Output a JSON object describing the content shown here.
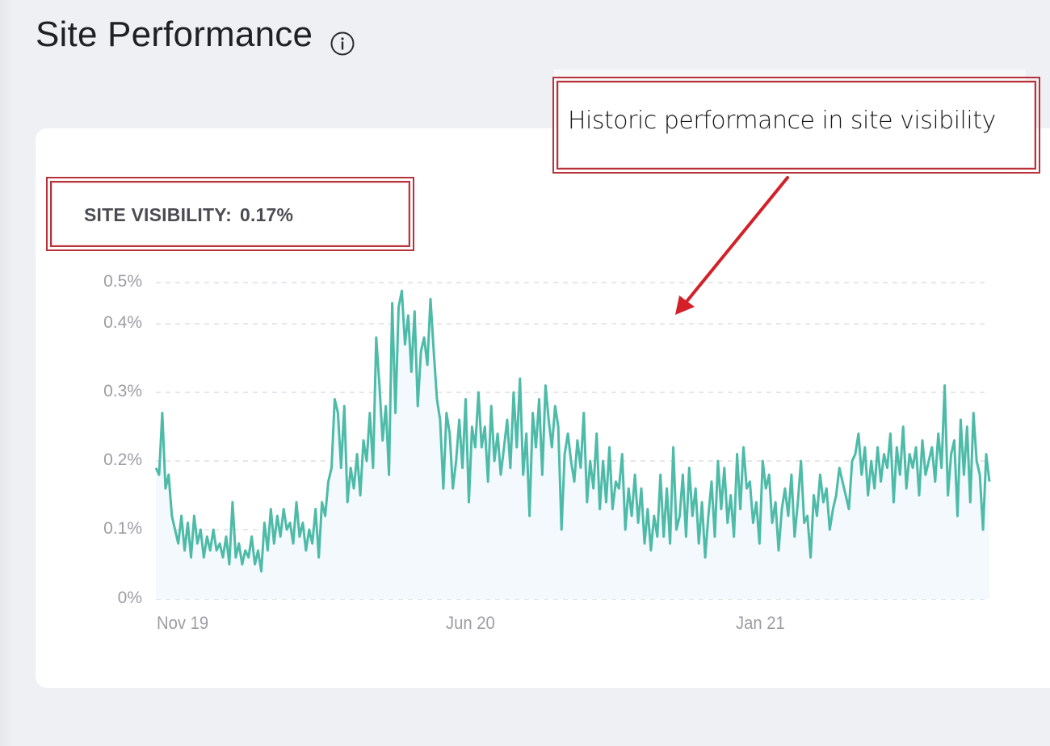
{
  "page": {
    "title": "Site Performance",
    "info_icon": "info-circle-icon"
  },
  "metric": {
    "label": "SITE VISIBILITY:",
    "value": "0.17%"
  },
  "annotation": {
    "callout_text": "Historic performance in site visibility",
    "arrow_icon": "arrow-down-left-icon",
    "accent_color": "#d42028"
  },
  "colors": {
    "line": "#4dbba8",
    "area": "#f3f9fd",
    "grid": "#dedfe3",
    "axis_text": "#9b9da2",
    "annotation_border": "#b8323a"
  },
  "chart_data": {
    "type": "area",
    "title": "Site Visibility",
    "xlabel": "",
    "ylabel": "",
    "ylim": [
      0,
      0.5
    ],
    "y_unit": "%",
    "y_ticks": [
      "0%",
      "0.1%",
      "0.2%",
      "0.3%",
      "0.4%",
      "0.5%"
    ],
    "x_ticks": [
      "Nov 19",
      "Jun 20",
      "Jan 21"
    ],
    "grid": true,
    "grid_style": "dashed horizontal",
    "legend": null,
    "x_range": [
      "Oct 19",
      "Aug 21"
    ],
    "series": [
      {
        "name": "Site visibility",
        "values": [
          0.19,
          0.18,
          0.27,
          0.16,
          0.18,
          0.12,
          0.1,
          0.08,
          0.12,
          0.07,
          0.11,
          0.06,
          0.12,
          0.08,
          0.1,
          0.06,
          0.09,
          0.07,
          0.1,
          0.07,
          0.08,
          0.06,
          0.09,
          0.05,
          0.14,
          0.06,
          0.08,
          0.05,
          0.07,
          0.06,
          0.09,
          0.05,
          0.07,
          0.04,
          0.11,
          0.07,
          0.13,
          0.08,
          0.12,
          0.09,
          0.13,
          0.1,
          0.11,
          0.08,
          0.14,
          0.09,
          0.11,
          0.07,
          0.1,
          0.08,
          0.13,
          0.06,
          0.14,
          0.12,
          0.17,
          0.19,
          0.29,
          0.27,
          0.19,
          0.28,
          0.14,
          0.19,
          0.16,
          0.21,
          0.15,
          0.23,
          0.2,
          0.27,
          0.19,
          0.38,
          0.31,
          0.23,
          0.28,
          0.18,
          0.45,
          0.27,
          0.44,
          0.48,
          0.37,
          0.42,
          0.33,
          0.43,
          0.28,
          0.36,
          0.38,
          0.34,
          0.46,
          0.36,
          0.29,
          0.26,
          0.16,
          0.27,
          0.24,
          0.16,
          0.2,
          0.26,
          0.19,
          0.29,
          0.14,
          0.25,
          0.22,
          0.3,
          0.22,
          0.25,
          0.17,
          0.28,
          0.2,
          0.24,
          0.18,
          0.22,
          0.26,
          0.19,
          0.3,
          0.22,
          0.32,
          0.18,
          0.24,
          0.12,
          0.27,
          0.22,
          0.29,
          0.18,
          0.31,
          0.26,
          0.22,
          0.28,
          0.25,
          0.1,
          0.21,
          0.24,
          0.2,
          0.17,
          0.23,
          0.19,
          0.27,
          0.14,
          0.2,
          0.16,
          0.24,
          0.13,
          0.2,
          0.14,
          0.22,
          0.13,
          0.17,
          0.16,
          0.21,
          0.1,
          0.16,
          0.12,
          0.18,
          0.11,
          0.16,
          0.08,
          0.13,
          0.07,
          0.12,
          0.09,
          0.18,
          0.09,
          0.16,
          0.08,
          0.22,
          0.1,
          0.12,
          0.18,
          0.09,
          0.19,
          0.12,
          0.16,
          0.08,
          0.14,
          0.06,
          0.12,
          0.17,
          0.09,
          0.2,
          0.13,
          0.19,
          0.11,
          0.15,
          0.09,
          0.21,
          0.13,
          0.22,
          0.16,
          0.17,
          0.11,
          0.14,
          0.08,
          0.2,
          0.16,
          0.18,
          0.11,
          0.14,
          0.07,
          0.13,
          0.16,
          0.12,
          0.18,
          0.09,
          0.14,
          0.2,
          0.11,
          0.12,
          0.06,
          0.15,
          0.12,
          0.18,
          0.14,
          0.16,
          0.1,
          0.13,
          0.15,
          0.19,
          0.17,
          0.15,
          0.13,
          0.2,
          0.21,
          0.24,
          0.18,
          0.22,
          0.15,
          0.2,
          0.16,
          0.22,
          0.17,
          0.21,
          0.19,
          0.24,
          0.14,
          0.22,
          0.18,
          0.25,
          0.16,
          0.21,
          0.19,
          0.22,
          0.15,
          0.23,
          0.18,
          0.2,
          0.22,
          0.17,
          0.24,
          0.19,
          0.31,
          0.15,
          0.21,
          0.23,
          0.12,
          0.26,
          0.18,
          0.25,
          0.14,
          0.27,
          0.2,
          0.18,
          0.1,
          0.21,
          0.17
        ]
      }
    ],
    "current_value": 0.17
  }
}
